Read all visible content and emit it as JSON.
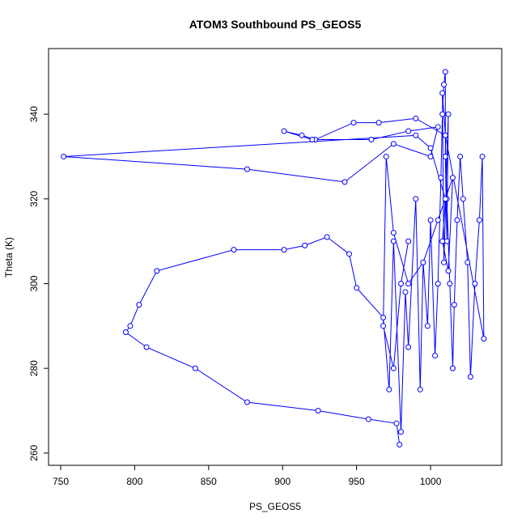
{
  "chart_data": {
    "type": "line",
    "title": "ATOM3 Southbound PS_GEOS5",
    "x_label": "PS_GEOS5",
    "y_label": "Theta (K)",
    "x": [
      979,
      977,
      958,
      924,
      876,
      841,
      808,
      794,
      797,
      803,
      815,
      867,
      901,
      915,
      930,
      945,
      950,
      968,
      972,
      975,
      980,
      983,
      985,
      990,
      993,
      995,
      998,
      1000,
      1003,
      1005,
      1007,
      1008,
      1009,
      1010,
      1010,
      1011,
      1012,
      1009,
      1008,
      1010,
      1011,
      1013,
      1015,
      1016,
      1018,
      1020,
      1022,
      1025,
      1027,
      1030,
      1033,
      1035,
      1036,
      1010,
      990,
      965,
      948,
      922,
      913,
      901,
      920,
      960,
      985,
      1005,
      1000,
      975,
      942,
      876,
      752,
      990,
      1000,
      1010,
      1008,
      1012,
      1015,
      1005,
      995,
      985,
      975,
      970,
      968,
      975,
      980,
      985
    ],
    "series": [
      {
        "name": "Theta",
        "color": "#0000ff",
        "values": [
          262,
          267,
          268,
          270,
          272,
          280,
          285,
          288.5,
          290,
          295,
          303,
          308,
          308,
          309,
          311,
          307,
          299,
          292,
          275,
          310,
          265,
          298,
          285,
          320,
          275,
          305,
          290,
          315,
          283,
          300,
          325,
          340,
          347,
          350,
          330,
          310,
          340,
          305,
          345,
          335,
          320,
          300,
          280,
          295,
          315,
          330,
          320,
          305,
          278,
          300,
          315,
          330,
          287,
          335,
          339,
          338,
          338,
          334,
          335,
          336,
          334,
          334,
          336,
          337,
          330,
          333,
          324,
          327,
          330,
          335,
          332,
          320,
          310,
          303,
          325,
          315,
          305,
          300,
          312,
          330,
          290,
          280,
          300,
          310
        ]
      }
    ],
    "xlim": [
      741.8,
      1048.1
    ],
    "ylim": [
      257.1,
      355.5
    ],
    "xticks": [
      750,
      800,
      850,
      900,
      950,
      1000
    ],
    "yticks": [
      260,
      280,
      300,
      320,
      340
    ]
  }
}
